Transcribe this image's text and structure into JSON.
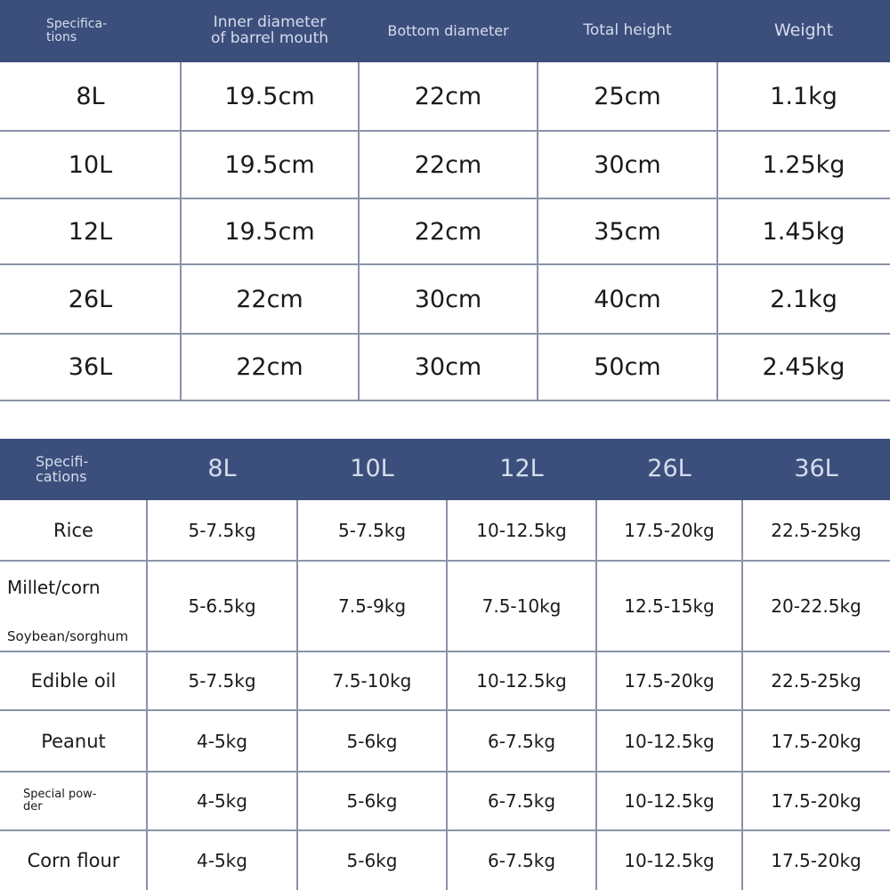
{
  "colors": {
    "header_bg": "#3c4f7c",
    "header_text": "#d6dcec",
    "grid": "#8a93a8"
  },
  "dimensions_table": {
    "headers": [
      "Specifica-\ntions",
      "Inner diameter\nof barrel mouth",
      "Bottom diameter",
      "Total height",
      "Weight"
    ],
    "rows": [
      [
        "8L",
        "19.5cm",
        "22cm",
        "25cm",
        "1.1kg"
      ],
      [
        "10L",
        "19.5cm",
        "22cm",
        "30cm",
        "1.25kg"
      ],
      [
        "12L",
        "19.5cm",
        "22cm",
        "35cm",
        "1.45kg"
      ],
      [
        "26L",
        "22cm",
        "30cm",
        "40cm",
        "2.1kg"
      ],
      [
        "36L",
        "22cm",
        "30cm",
        "50cm",
        "2.45kg"
      ]
    ]
  },
  "capacity_table": {
    "headers": [
      "Specifi-\ncations",
      "8L",
      "10L",
      "12L",
      "26L",
      "36L"
    ],
    "rows": [
      [
        "Rice",
        "5-7.5kg",
        "5-7.5kg",
        "10-12.5kg",
        "17.5-20kg",
        "22.5-25kg"
      ],
      [
        "Millet/corn|Soybean/sorghum",
        "5-6.5kg",
        "7.5-9kg",
        "7.5-10kg",
        "12.5-15kg",
        "20-22.5kg"
      ],
      [
        "Edible oil",
        "5-7.5kg",
        "7.5-10kg",
        "10-12.5kg",
        "17.5-20kg",
        "22.5-25kg"
      ],
      [
        "Peanut",
        "4-5kg",
        "5-6kg",
        "6-7.5kg",
        "10-12.5kg",
        "17.5-20kg"
      ],
      [
        "Special pow-\nder",
        "4-5kg",
        "5-6kg",
        "6-7.5kg",
        "10-12.5kg",
        "17.5-20kg"
      ],
      [
        "Corn flour",
        "4-5kg",
        "5-6kg",
        "6-7.5kg",
        "10-12.5kg",
        "17.5-20kg"
      ]
    ]
  }
}
